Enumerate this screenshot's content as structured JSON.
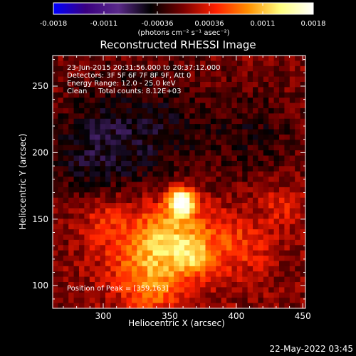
{
  "chart_data": {
    "type": "heatmap",
    "title": "Reconstructed RHESSI Image",
    "xlabel": "Heliocentric X (arcsec)",
    "ylabel": "Heliocentric Y (arcsec)",
    "xlim": [
      262,
      452
    ],
    "ylim": [
      83,
      273
    ],
    "x_ticks": [
      300,
      350,
      400,
      450
    ],
    "y_ticks": [
      100,
      150,
      200,
      250
    ],
    "colorbar": {
      "range": [
        -0.0018,
        0.0018
      ],
      "ticks": [
        "-0.0018",
        "-0.0011",
        "-0.00036",
        "0.00036",
        "0.0011",
        "0.0018"
      ],
      "tick_values": [
        -0.0018,
        -0.0011,
        -0.00036,
        0.00036,
        0.0011,
        0.0018
      ],
      "unit_label": "(photons cm⁻² s⁻¹ asec⁻²)",
      "colors": [
        "#0000ff",
        "#3a0080",
        "#5a2a8a",
        "#000000",
        "#7a0000",
        "#ff2000",
        "#ff9000",
        "#ffff80",
        "#ffffff"
      ]
    },
    "annotations": [
      "23-Jun-2015 20:31:56.000 to 20:37:12.000",
      "Detectors: 3F 5F 6F 7F 8F 9F, Att 0",
      "Energy Range: 12.0 - 25.0 keV",
      "Clean     Total counts: 8.12E+03"
    ],
    "peak_label": "Position of Peak = [359,163]",
    "peak": [
      359,
      163
    ],
    "sources": [
      {
        "x": 359,
        "y": 163,
        "amplitude": 0.0018,
        "sigma": 7
      },
      {
        "x": 352,
        "y": 138,
        "amplitude": 0.0009,
        "sigma": 20
      },
      {
        "x": 330,
        "y": 118,
        "amplitude": 0.0006,
        "sigma": 22
      },
      {
        "x": 368,
        "y": 122,
        "amplitude": 0.0006,
        "sigma": 10
      },
      {
        "x": 400,
        "y": 130,
        "amplitude": 0.0005,
        "sigma": 18
      },
      {
        "x": 435,
        "y": 160,
        "amplitude": 0.00035,
        "sigma": 12
      },
      {
        "x": 300,
        "y": 150,
        "amplitude": 0.0004,
        "sigma": 14
      },
      {
        "x": 340,
        "y": 95,
        "amplitude": 0.0004,
        "sigma": 14
      },
      {
        "x": 330,
        "y": 215,
        "amplitude": -0.00045,
        "sigma": 35
      },
      {
        "x": 285,
        "y": 200,
        "amplitude": -0.00035,
        "sigma": 25
      },
      {
        "x": 415,
        "y": 215,
        "amplitude": -0.0003,
        "sigma": 25
      }
    ]
  },
  "timestamp": "22-May-2022 03:45"
}
